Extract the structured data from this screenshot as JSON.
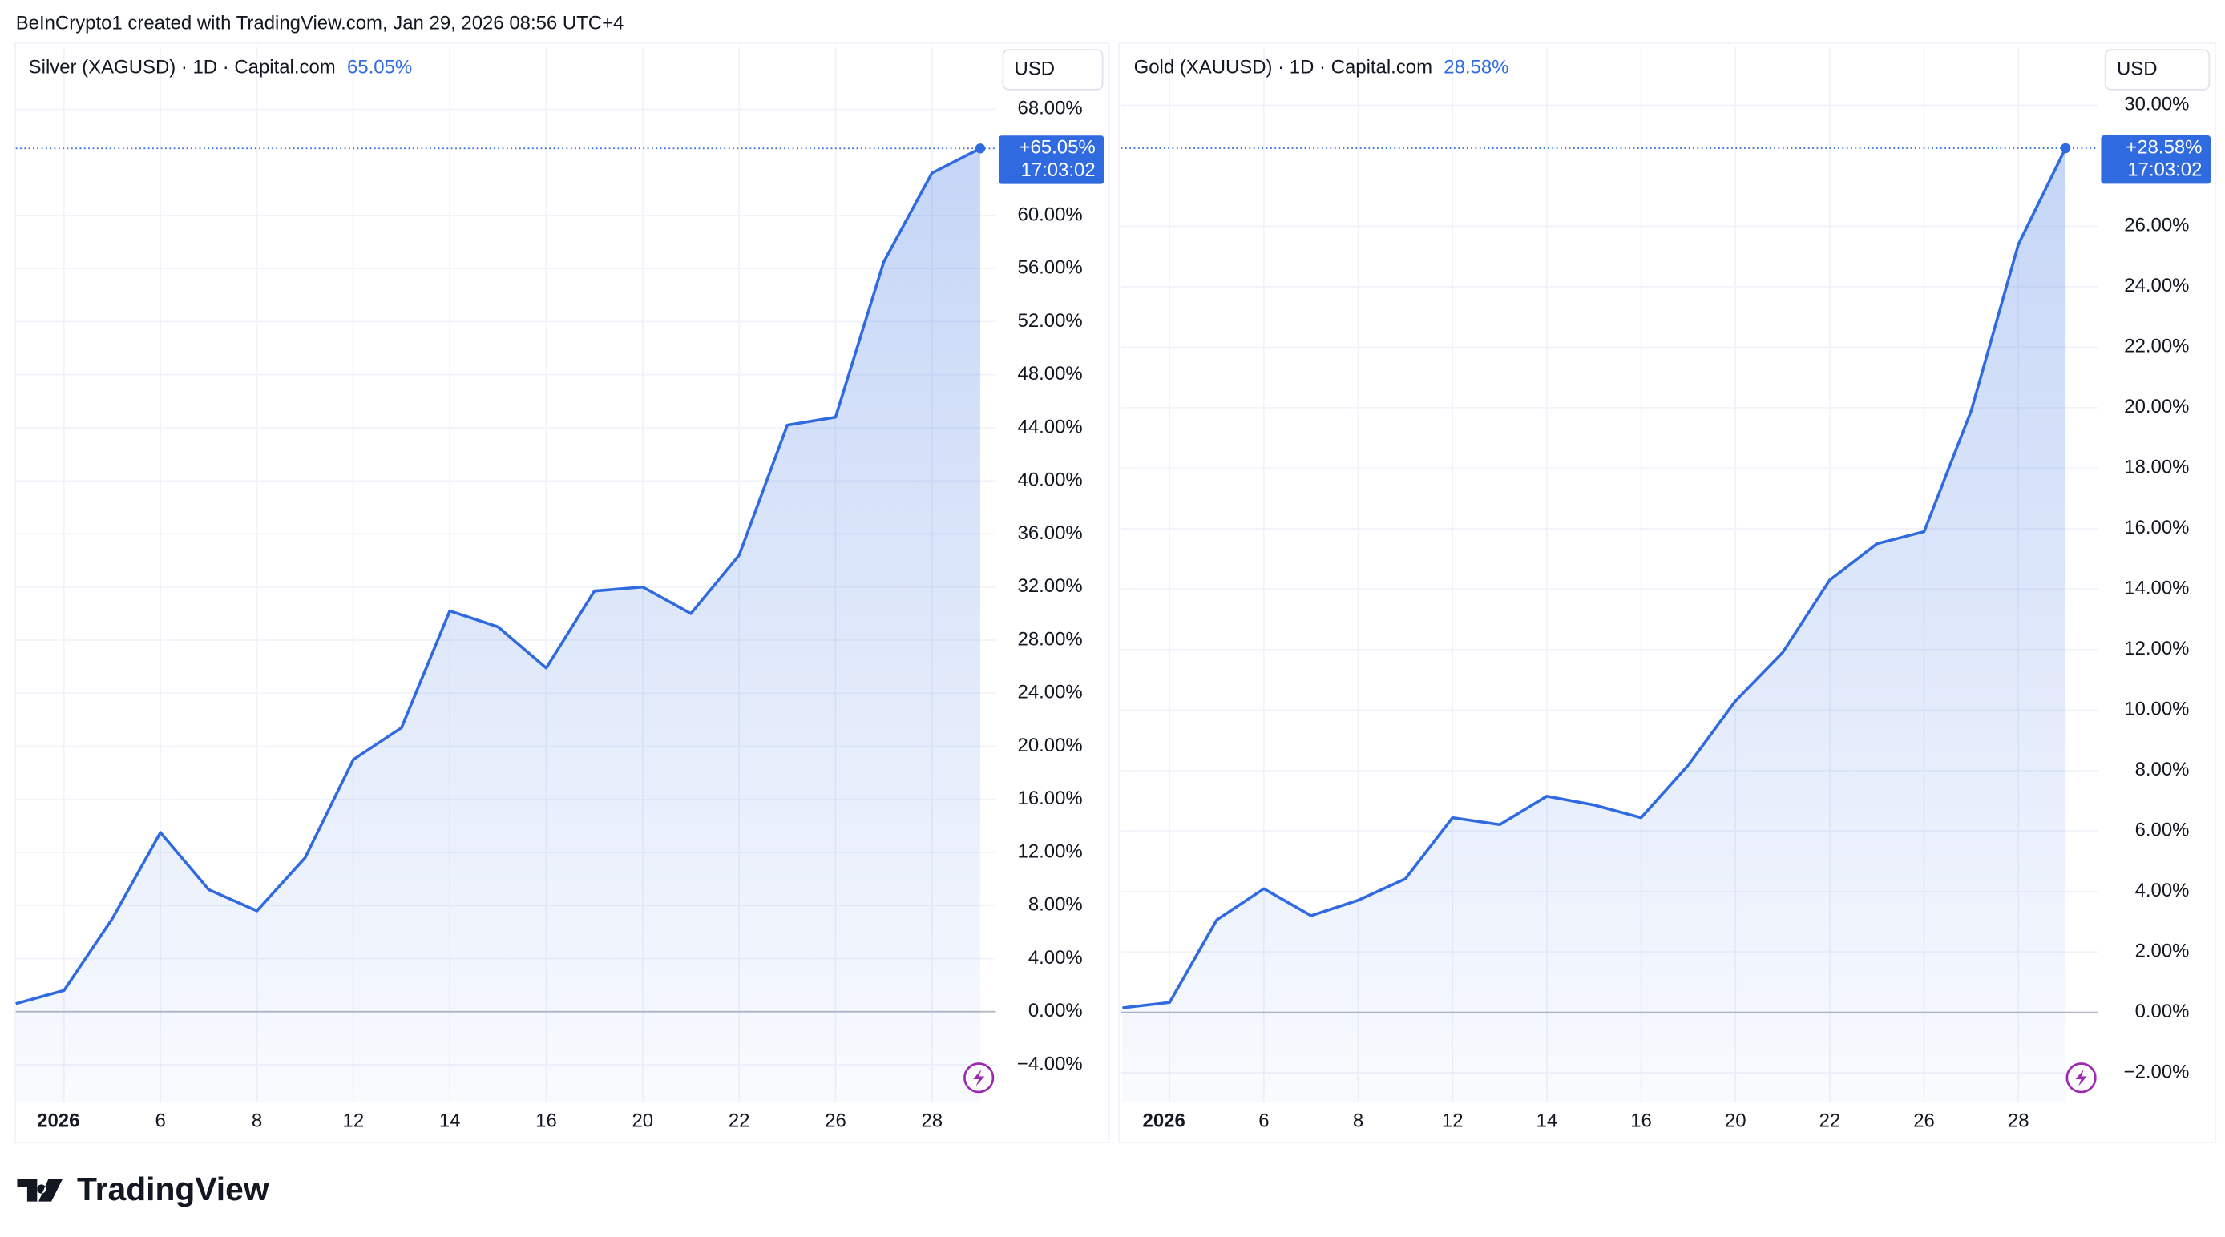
{
  "header": "BeInCrypto1 created with TradingView.com, Jan 29, 2026 08:56 UTC+4",
  "brand": "TradingView",
  "chart_data": [
    {
      "type": "line",
      "title": "Silver (XAGUSD) · 1D · Capital.com",
      "change": "65.05%",
      "currency": "USD",
      "categories": [
        null,
        "2026",
        null,
        "6",
        null,
        "8",
        null,
        "12",
        null,
        "14",
        null,
        "16",
        null,
        "20",
        null,
        "22",
        null,
        "26",
        null,
        "28",
        null
      ],
      "values": [
        0.6,
        1.6,
        7.0,
        13.5,
        9.2,
        7.6,
        11.6,
        19.0,
        21.4,
        30.2,
        29.0,
        25.9,
        31.7,
        32.0,
        30.0,
        34.4,
        44.2,
        44.8,
        56.5,
        63.2,
        65.05
      ],
      "value_labels": [
        null,
        null,
        null,
        null,
        null,
        null,
        null,
        null,
        null,
        null,
        null,
        null,
        null,
        null,
        null,
        null,
        null,
        null,
        null,
        null,
        "+65.05%"
      ],
      "countdown": "17:03:02",
      "color": "#2f6ae0",
      "area": true,
      "grid": true,
      "ylim": [
        -6.8,
        72.7
      ],
      "yticks": [
        {
          "value": -4,
          "label": "−4.00%"
        },
        {
          "value": 0,
          "label": "0.00%"
        },
        {
          "value": 4,
          "label": "4.00%"
        },
        {
          "value": 8,
          "label": "8.00%"
        },
        {
          "value": 12,
          "label": "12.00%"
        },
        {
          "value": 16,
          "label": "16.00%"
        },
        {
          "value": 20,
          "label": "20.00%"
        },
        {
          "value": 24,
          "label": "24.00%"
        },
        {
          "value": 28,
          "label": "28.00%"
        },
        {
          "value": 32,
          "label": "32.00%"
        },
        {
          "value": 36,
          "label": "36.00%"
        },
        {
          "value": 40,
          "label": "40.00%"
        },
        {
          "value": 44,
          "label": "44.00%"
        },
        {
          "value": 48,
          "label": "48.00%"
        },
        {
          "value": 52,
          "label": "52.00%"
        },
        {
          "value": 56,
          "label": "56.00%"
        },
        {
          "value": 60,
          "label": "60.00%"
        },
        {
          "value": 68,
          "label": "68.00%"
        }
      ]
    },
    {
      "type": "line",
      "title": "Gold (XAUUSD) · 1D · Capital.com",
      "change": "28.58%",
      "currency": "USD",
      "categories": [
        null,
        "2026",
        null,
        "6",
        null,
        "8",
        null,
        "12",
        null,
        "14",
        null,
        "16",
        null,
        "20",
        null,
        "22",
        null,
        "26",
        null,
        "28",
        null
      ],
      "values": [
        0.15,
        0.33,
        3.06,
        4.09,
        3.2,
        3.71,
        4.42,
        6.44,
        6.21,
        7.15,
        6.86,
        6.44,
        8.18,
        10.3,
        11.9,
        14.3,
        15.5,
        15.9,
        19.9,
        25.4,
        28.58
      ],
      "value_labels": [
        null,
        null,
        null,
        null,
        null,
        null,
        null,
        null,
        null,
        null,
        null,
        null,
        null,
        null,
        null,
        null,
        null,
        null,
        null,
        null,
        "+28.58%"
      ],
      "countdown": "17:03:02",
      "color": "#2f6ae0",
      "area": true,
      "grid": true,
      "ylim": [
        -2.96,
        31.93
      ],
      "yticks": [
        {
          "value": -2,
          "label": "−2.00%"
        },
        {
          "value": 0,
          "label": "0.00%"
        },
        {
          "value": 2,
          "label": "2.00%"
        },
        {
          "value": 4,
          "label": "4.00%"
        },
        {
          "value": 6,
          "label": "6.00%"
        },
        {
          "value": 8,
          "label": "8.00%"
        },
        {
          "value": 10,
          "label": "10.00%"
        },
        {
          "value": 12,
          "label": "12.00%"
        },
        {
          "value": 14,
          "label": "14.00%"
        },
        {
          "value": 16,
          "label": "16.00%"
        },
        {
          "value": 18,
          "label": "18.00%"
        },
        {
          "value": 20,
          "label": "20.00%"
        },
        {
          "value": 22,
          "label": "22.00%"
        },
        {
          "value": 24,
          "label": "24.00%"
        },
        {
          "value": 26,
          "label": "26.00%"
        },
        {
          "value": 30,
          "label": "30.00%"
        }
      ]
    }
  ]
}
